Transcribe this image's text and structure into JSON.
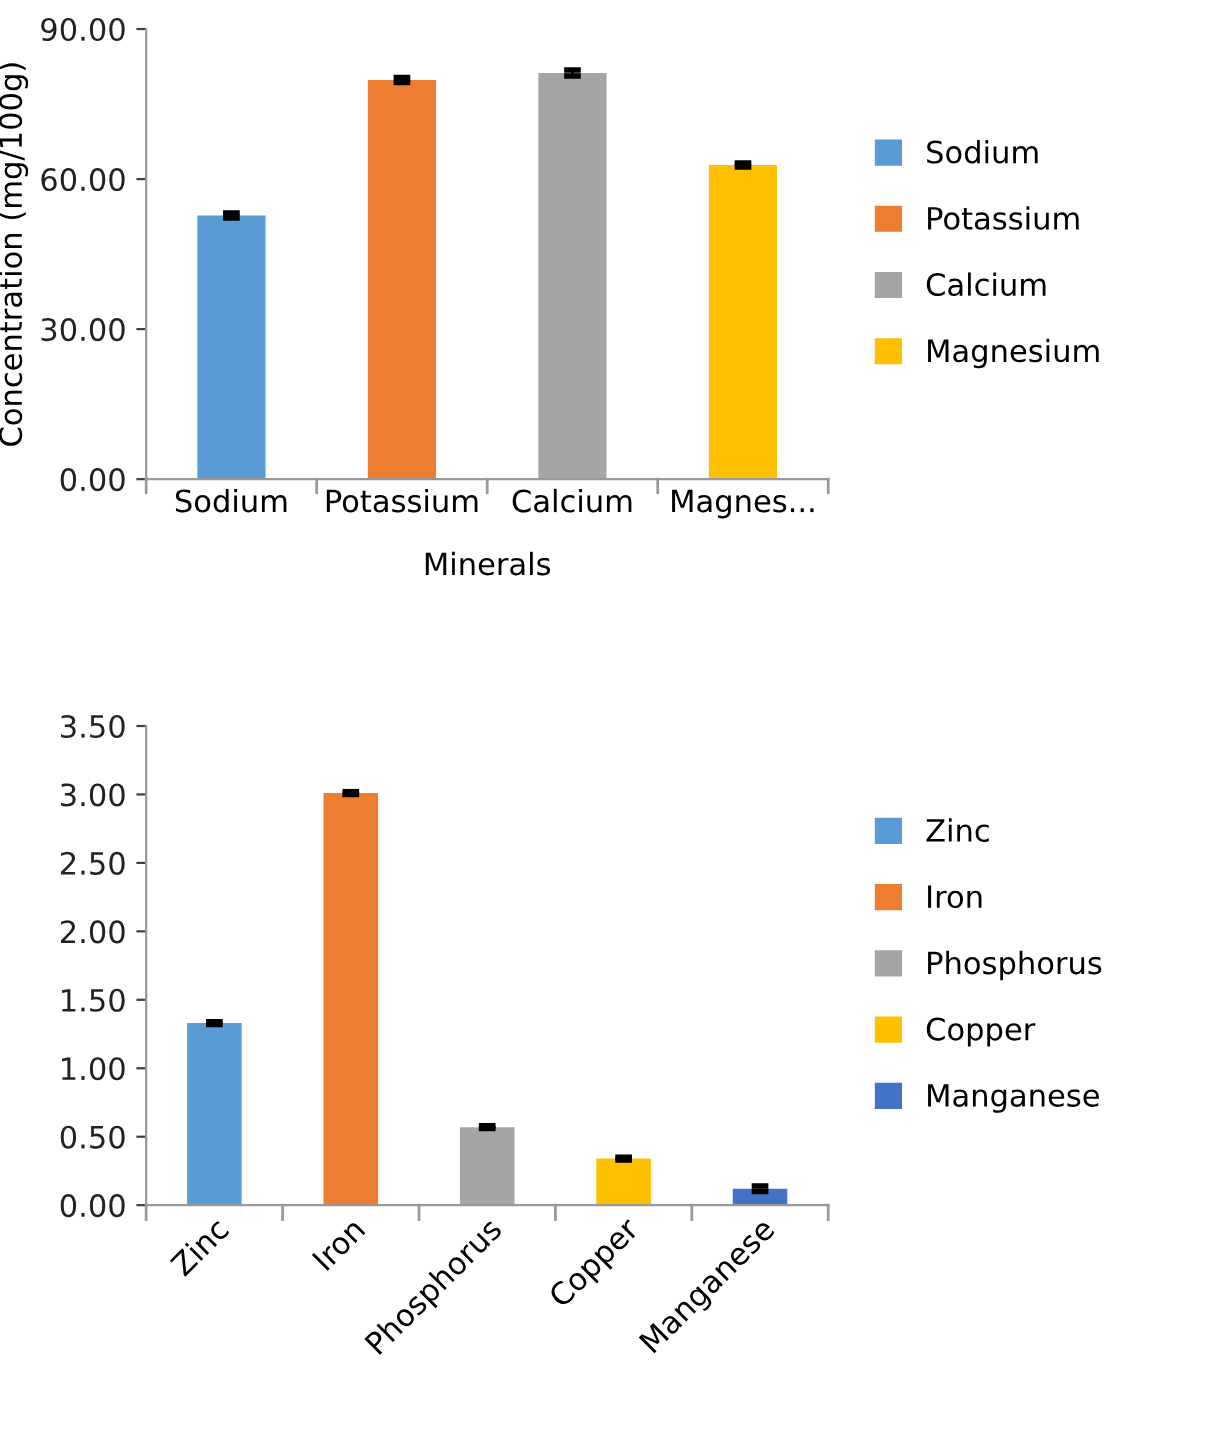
{
  "chart_data": [
    {
      "type": "bar",
      "ylabel": "Concentration (mg/100g)",
      "xlabel": "Minerals",
      "categories": [
        "Sodium",
        "Potassium",
        "Calcium",
        "Magnes..."
      ],
      "series": [
        {
          "name": "Sodium",
          "color": "#5b9bd5",
          "values": [
            52.7,
            null,
            null,
            null
          ],
          "errors": [
            0.5,
            null,
            null,
            null
          ]
        },
        {
          "name": "Potassium",
          "color": "#ed7d31",
          "values": [
            null,
            79.8,
            null,
            null
          ],
          "errors": [
            null,
            0.5,
            null,
            null
          ]
        },
        {
          "name": "Calcium",
          "color": "#a5a5a5",
          "values": [
            null,
            null,
            81.2,
            null
          ],
          "errors": [
            null,
            null,
            0.6,
            null
          ]
        },
        {
          "name": "Magnesium",
          "color": "#ffc000",
          "values": [
            null,
            null,
            null,
            62.8
          ],
          "errors": [
            null,
            null,
            null,
            0.4
          ]
        }
      ],
      "ylim": [
        0,
        90
      ],
      "yticks": [
        {
          "value": 0,
          "label": "0.00"
        },
        {
          "value": 30,
          "label": "30.00"
        },
        {
          "value": 60,
          "label": "60.00"
        },
        {
          "value": 90,
          "label": "90.00"
        }
      ],
      "grid": false,
      "legend": "right"
    },
    {
      "type": "bar",
      "categories": [
        "Zinc",
        "Iron",
        "Phosphorus",
        "Copper",
        "Manganese"
      ],
      "series": [
        {
          "name": "Zinc",
          "color": "#5b9bd5",
          "values": [
            1.33,
            null,
            null,
            null,
            null
          ],
          "errors": [
            0.01,
            null,
            null,
            null,
            null
          ]
        },
        {
          "name": "Iron",
          "color": "#ed7d31",
          "values": [
            null,
            3.01,
            null,
            null,
            null
          ],
          "errors": [
            null,
            0.01,
            null,
            null,
            null
          ]
        },
        {
          "name": "Phosphorus",
          "color": "#a5a5a5",
          "values": [
            null,
            null,
            0.57,
            null,
            null
          ],
          "errors": [
            null,
            null,
            0.01,
            null,
            null
          ]
        },
        {
          "name": "Copper",
          "color": "#ffc000",
          "values": [
            null,
            null,
            null,
            0.34,
            null
          ],
          "errors": [
            null,
            null,
            null,
            0.01,
            null
          ]
        },
        {
          "name": "Manganese",
          "color": "#4472c4",
          "values": [
            null,
            null,
            null,
            null,
            0.12
          ],
          "errors": [
            null,
            null,
            null,
            null,
            0.02
          ]
        }
      ],
      "ylim": [
        0,
        3.5
      ],
      "yticks": [
        {
          "value": 0,
          "label": "0.00"
        },
        {
          "value": 0.5,
          "label": "0.50"
        },
        {
          "value": 1,
          "label": "1.00"
        },
        {
          "value": 1.5,
          "label": "1.50"
        },
        {
          "value": 2,
          "label": "2.00"
        },
        {
          "value": 2.5,
          "label": "2.50"
        },
        {
          "value": 3,
          "label": "3.00"
        },
        {
          "value": 3.5,
          "label": "3.50"
        }
      ],
      "grid": false,
      "legend": "right"
    }
  ]
}
